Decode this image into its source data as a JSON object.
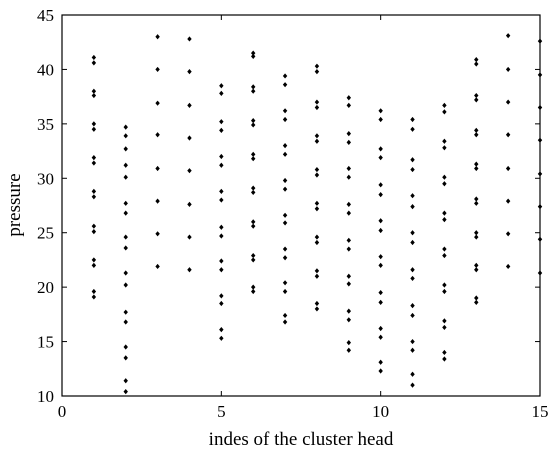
{
  "chart_data": {
    "type": "scatter",
    "title": "",
    "xlabel": "indes of the cluster head",
    "ylabel": "pressure",
    "xlim": [
      0,
      15
    ],
    "ylim": [
      10,
      45
    ],
    "xticks": [
      0,
      5,
      10,
      15
    ],
    "yticks": [
      10,
      15,
      20,
      25,
      30,
      35,
      40,
      45
    ],
    "grid": false,
    "legend": "none",
    "marker": "diamond",
    "marker_color": "#000000",
    "series": [
      {
        "points": [
          [
            1,
            41.1
          ],
          [
            1,
            40.6
          ],
          [
            1,
            38.0
          ],
          [
            1,
            37.6
          ],
          [
            1,
            35.0
          ],
          [
            1,
            34.5
          ],
          [
            1,
            31.9
          ],
          [
            1,
            31.4
          ],
          [
            1,
            28.8
          ],
          [
            1,
            28.3
          ],
          [
            1,
            25.6
          ],
          [
            1,
            25.1
          ],
          [
            1,
            22.5
          ],
          [
            1,
            22.0
          ],
          [
            1,
            19.6
          ],
          [
            1,
            19.1
          ],
          [
            2,
            34.7
          ],
          [
            2,
            33.9
          ],
          [
            2,
            32.7
          ],
          [
            2,
            31.2
          ],
          [
            2,
            30.1
          ],
          [
            2,
            27.7
          ],
          [
            2,
            26.8
          ],
          [
            2,
            24.6
          ],
          [
            2,
            23.6
          ],
          [
            2,
            21.3
          ],
          [
            2,
            20.2
          ],
          [
            2,
            17.7
          ],
          [
            2,
            16.8
          ],
          [
            2,
            14.5
          ],
          [
            2,
            13.5
          ],
          [
            2,
            11.4
          ],
          [
            2,
            10.4
          ],
          [
            3,
            43.0
          ],
          [
            3,
            40.0
          ],
          [
            3,
            36.9
          ],
          [
            3,
            34.0
          ],
          [
            3,
            30.9
          ],
          [
            3,
            27.9
          ],
          [
            3,
            24.9
          ],
          [
            3,
            21.9
          ],
          [
            4,
            42.8
          ],
          [
            4,
            39.8
          ],
          [
            4,
            36.7
          ],
          [
            4,
            33.7
          ],
          [
            4,
            30.7
          ],
          [
            4,
            27.6
          ],
          [
            4,
            24.6
          ],
          [
            4,
            21.6
          ],
          [
            5,
            38.5
          ],
          [
            5,
            37.8
          ],
          [
            5,
            35.2
          ],
          [
            5,
            34.4
          ],
          [
            5,
            32.0
          ],
          [
            5,
            31.2
          ],
          [
            5,
            28.8
          ],
          [
            5,
            28.0
          ],
          [
            5,
            25.5
          ],
          [
            5,
            24.7
          ],
          [
            5,
            22.4
          ],
          [
            5,
            21.6
          ],
          [
            5,
            19.2
          ],
          [
            5,
            18.5
          ],
          [
            5,
            16.1
          ],
          [
            5,
            15.3
          ],
          [
            6,
            41.5
          ],
          [
            6,
            41.2
          ],
          [
            6,
            38.4
          ],
          [
            6,
            38.0
          ],
          [
            6,
            35.3
          ],
          [
            6,
            34.9
          ],
          [
            6,
            32.2
          ],
          [
            6,
            31.8
          ],
          [
            6,
            29.1
          ],
          [
            6,
            28.7
          ],
          [
            6,
            26.0
          ],
          [
            6,
            25.6
          ],
          [
            6,
            22.9
          ],
          [
            6,
            22.5
          ],
          [
            6,
            20.0
          ],
          [
            6,
            19.6
          ],
          [
            7,
            39.4
          ],
          [
            7,
            38.6
          ],
          [
            7,
            36.2
          ],
          [
            7,
            35.4
          ],
          [
            7,
            33.0
          ],
          [
            7,
            32.2
          ],
          [
            7,
            29.8
          ],
          [
            7,
            29.0
          ],
          [
            7,
            26.6
          ],
          [
            7,
            25.9
          ],
          [
            7,
            23.5
          ],
          [
            7,
            22.7
          ],
          [
            7,
            20.4
          ],
          [
            7,
            19.6
          ],
          [
            7,
            17.4
          ],
          [
            7,
            16.8
          ],
          [
            8,
            40.3
          ],
          [
            8,
            39.8
          ],
          [
            8,
            37.0
          ],
          [
            8,
            36.5
          ],
          [
            8,
            33.9
          ],
          [
            8,
            33.4
          ],
          [
            8,
            30.8
          ],
          [
            8,
            30.3
          ],
          [
            8,
            27.7
          ],
          [
            8,
            27.2
          ],
          [
            8,
            24.6
          ],
          [
            8,
            24.1
          ],
          [
            8,
            21.5
          ],
          [
            8,
            21.0
          ],
          [
            8,
            18.5
          ],
          [
            8,
            18.0
          ],
          [
            9,
            37.4
          ],
          [
            9,
            36.7
          ],
          [
            9,
            34.1
          ],
          [
            9,
            33.3
          ],
          [
            9,
            30.9
          ],
          [
            9,
            30.1
          ],
          [
            9,
            27.6
          ],
          [
            9,
            26.8
          ],
          [
            9,
            24.3
          ],
          [
            9,
            23.5
          ],
          [
            9,
            21.0
          ],
          [
            9,
            20.3
          ],
          [
            9,
            17.8
          ],
          [
            9,
            17.0
          ],
          [
            9,
            14.9
          ],
          [
            9,
            14.2
          ],
          [
            10,
            36.2
          ],
          [
            10,
            35.4
          ],
          [
            10,
            32.7
          ],
          [
            10,
            31.9
          ],
          [
            10,
            29.4
          ],
          [
            10,
            28.5
          ],
          [
            10,
            26.1
          ],
          [
            10,
            25.2
          ],
          [
            10,
            22.8
          ],
          [
            10,
            22.0
          ],
          [
            10,
            19.5
          ],
          [
            10,
            18.6
          ],
          [
            10,
            16.2
          ],
          [
            10,
            15.4
          ],
          [
            10,
            13.1
          ],
          [
            10,
            12.3
          ],
          [
            11,
            35.4
          ],
          [
            11,
            34.5
          ],
          [
            11,
            31.7
          ],
          [
            11,
            30.8
          ],
          [
            11,
            28.4
          ],
          [
            11,
            27.4
          ],
          [
            11,
            25.0
          ],
          [
            11,
            24.1
          ],
          [
            11,
            21.6
          ],
          [
            11,
            20.8
          ],
          [
            11,
            18.3
          ],
          [
            11,
            17.4
          ],
          [
            11,
            15.0
          ],
          [
            11,
            14.2
          ],
          [
            11,
            12.0
          ],
          [
            11,
            11.0
          ],
          [
            12,
            36.7
          ],
          [
            12,
            36.1
          ],
          [
            12,
            33.4
          ],
          [
            12,
            32.8
          ],
          [
            12,
            30.1
          ],
          [
            12,
            29.5
          ],
          [
            12,
            26.8
          ],
          [
            12,
            26.2
          ],
          [
            12,
            23.5
          ],
          [
            12,
            22.9
          ],
          [
            12,
            20.2
          ],
          [
            12,
            19.6
          ],
          [
            12,
            16.9
          ],
          [
            12,
            16.3
          ],
          [
            12,
            14.0
          ],
          [
            12,
            13.4
          ],
          [
            13,
            40.9
          ],
          [
            13,
            40.5
          ],
          [
            13,
            37.6
          ],
          [
            13,
            37.2
          ],
          [
            13,
            34.4
          ],
          [
            13,
            34.0
          ],
          [
            13,
            31.3
          ],
          [
            13,
            30.9
          ],
          [
            13,
            28.1
          ],
          [
            13,
            27.7
          ],
          [
            13,
            25.0
          ],
          [
            13,
            24.6
          ],
          [
            13,
            22.0
          ],
          [
            13,
            21.6
          ],
          [
            13,
            19.0
          ],
          [
            13,
            18.6
          ],
          [
            14,
            43.1
          ],
          [
            14,
            40.0
          ],
          [
            14,
            37.0
          ],
          [
            14,
            34.0
          ],
          [
            14,
            30.9
          ],
          [
            14,
            27.9
          ],
          [
            14,
            24.9
          ],
          [
            14,
            21.9
          ],
          [
            15,
            42.6
          ],
          [
            15,
            39.5
          ],
          [
            15,
            36.5
          ],
          [
            15,
            33.5
          ],
          [
            15,
            30.4
          ],
          [
            15,
            27.4
          ],
          [
            15,
            24.4
          ],
          [
            15,
            21.3
          ]
        ]
      }
    ]
  }
}
